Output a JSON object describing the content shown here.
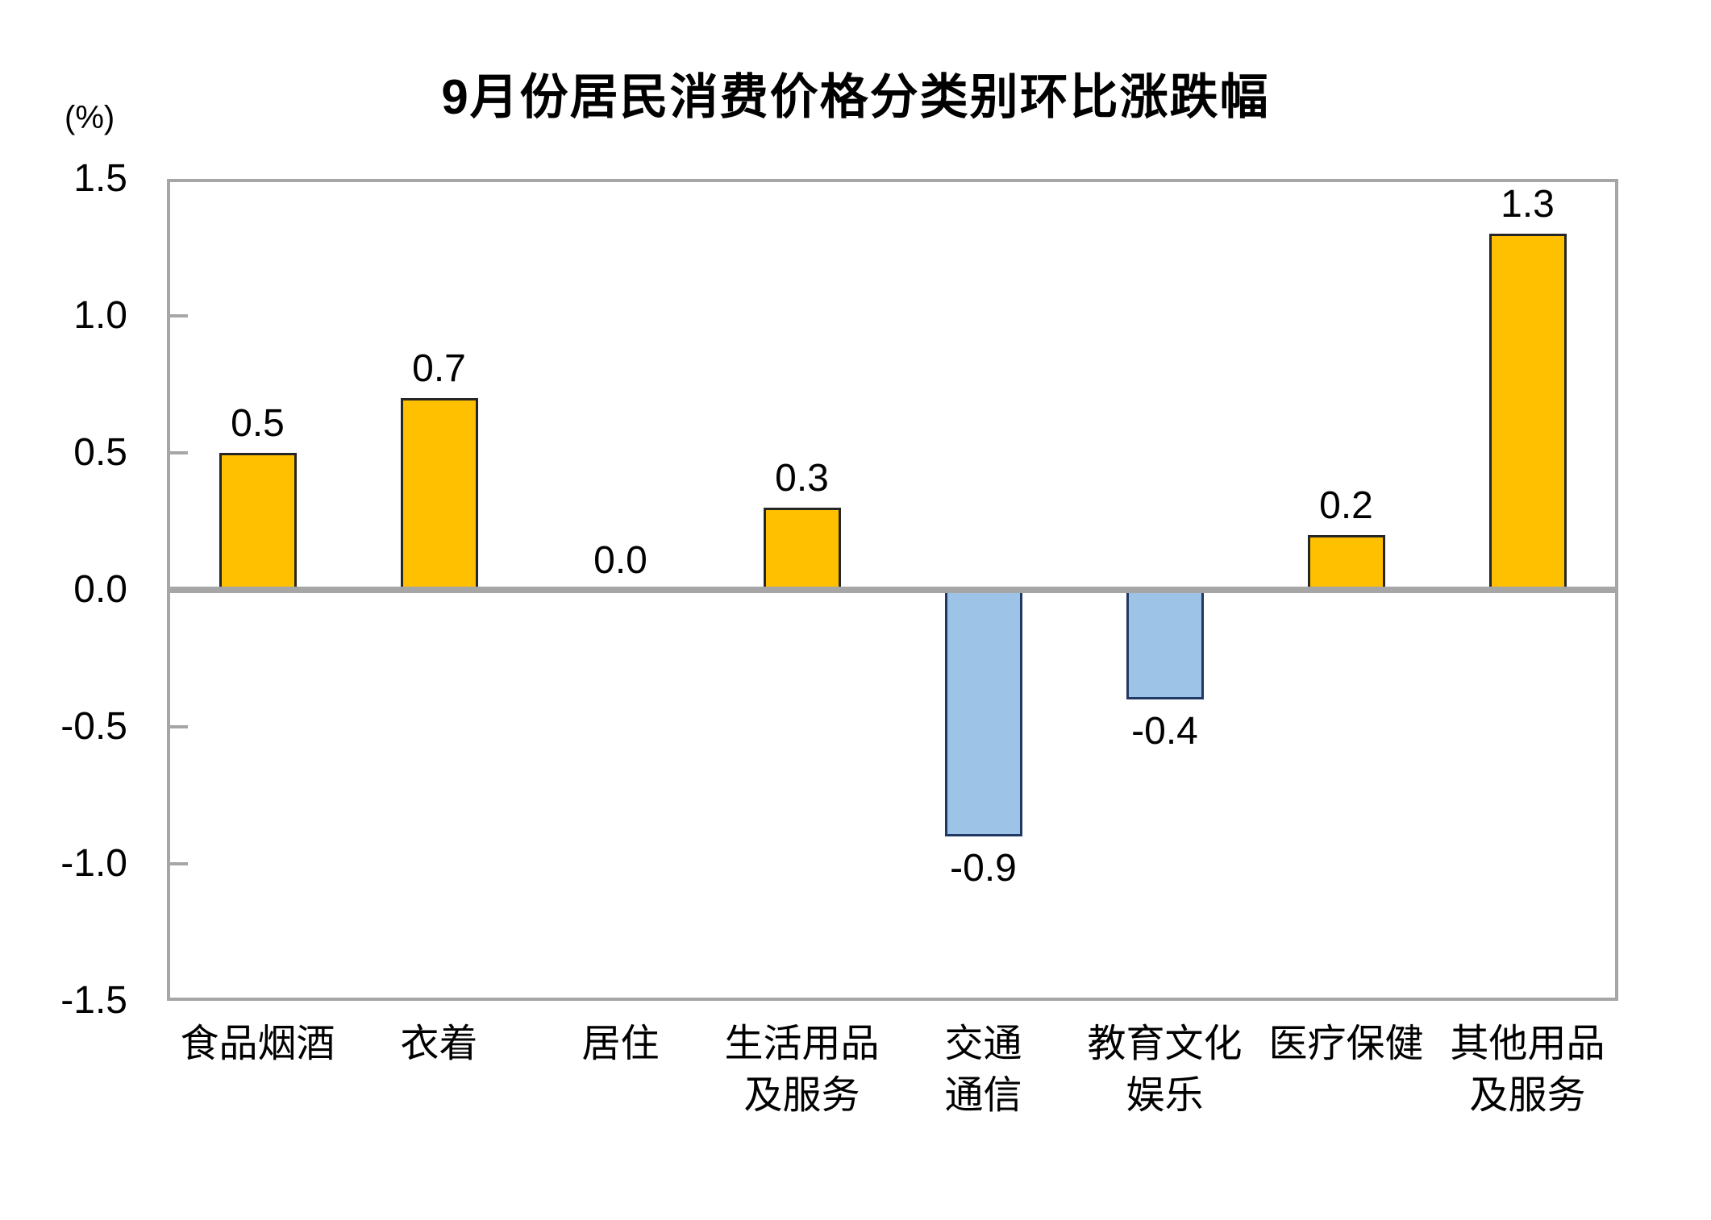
{
  "chart_data": {
    "type": "bar",
    "title": "9月份居民消费价格分类别环比涨跌幅",
    "unit_label": "(%)",
    "categories": [
      "食品烟酒",
      "衣着",
      "居住",
      "生活用品及服务",
      "交通通信",
      "教育文化娱乐",
      "医疗保健",
      "其他用品及服务"
    ],
    "category_lines": [
      [
        "食品烟酒"
      ],
      [
        "衣着"
      ],
      [
        "居住"
      ],
      [
        "生活用品",
        "及服务"
      ],
      [
        "交通",
        "通信"
      ],
      [
        "教育文化",
        "娱乐"
      ],
      [
        "医疗保健"
      ],
      [
        "其他用品",
        "及服务"
      ]
    ],
    "values": [
      0.5,
      0.7,
      0.0,
      0.3,
      -0.9,
      -0.4,
      0.2,
      1.3
    ],
    "value_labels": [
      "0.5",
      "0.7",
      "0.0",
      "0.3",
      "-0.9",
      "-0.4",
      "0.2",
      "1.3"
    ],
    "xlabel": "",
    "ylabel": "(%)",
    "ylim": [
      -1.5,
      1.5
    ],
    "yticks": [
      1.5,
      1.0,
      0.5,
      0.0,
      -0.5,
      -1.0,
      -1.5
    ],
    "ytick_labels": [
      "1.5",
      "1.0",
      "0.5",
      "0.0",
      "-0.5",
      "-1.0",
      "-1.5"
    ],
    "grid": false,
    "legend": null,
    "colors": {
      "positive_fill": "#FFC000",
      "positive_border": "#262626",
      "negative_fill": "#9DC3E6",
      "negative_border": "#1F3864",
      "axis_gray": "#A6A6A6",
      "text": "#000000"
    }
  }
}
